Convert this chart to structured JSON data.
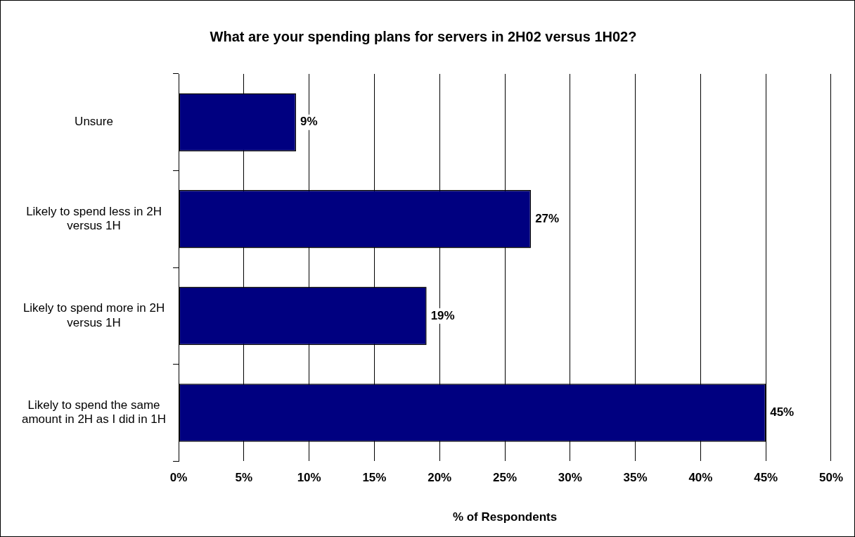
{
  "chart_data": {
    "type": "bar",
    "orientation": "horizontal",
    "title": "What are your spending plans for servers in 2H02 versus 1H02?",
    "xlabel": "% of Respondents",
    "categories": [
      "Unsure",
      "Likely to spend less in 2H versus 1H",
      "Likely to spend more in 2H versus 1H",
      "Likely to spend the same amount in 2H as I did in 1H"
    ],
    "values": [
      9,
      27,
      19,
      45
    ],
    "value_labels": [
      "9%",
      "27%",
      "19%",
      "45%"
    ],
    "color": "#000080",
    "xlim": [
      0,
      50
    ],
    "xticks": [
      {
        "value": 0,
        "label": "0%"
      },
      {
        "value": 5,
        "label": "5%"
      },
      {
        "value": 10,
        "label": "10%"
      },
      {
        "value": 15,
        "label": "15%"
      },
      {
        "value": 20,
        "label": "20%"
      },
      {
        "value": 25,
        "label": "25%"
      },
      {
        "value": 30,
        "label": "30%"
      },
      {
        "value": 35,
        "label": "35%"
      },
      {
        "value": 40,
        "label": "40%"
      },
      {
        "value": 45,
        "label": "45%"
      },
      {
        "value": 50,
        "label": "50%"
      }
    ],
    "grid": "x",
    "legend": false
  }
}
